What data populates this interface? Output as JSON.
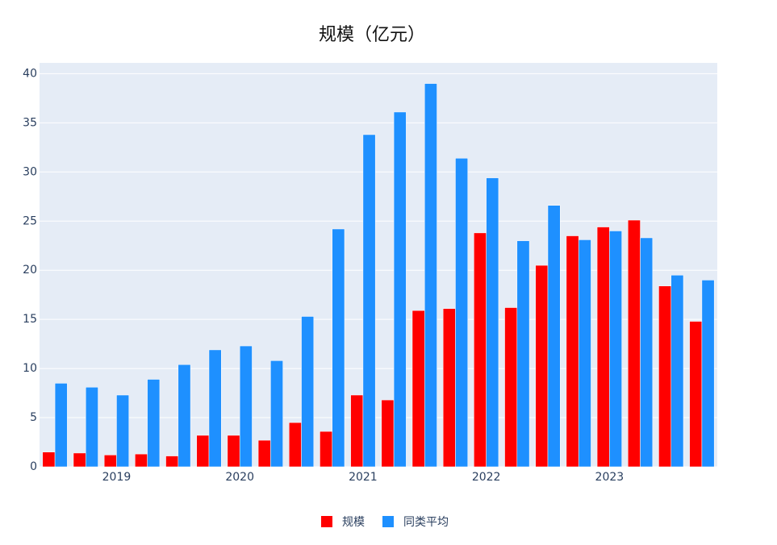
{
  "chart_data": {
    "type": "bar",
    "title": "规模（亿元）",
    "categories": [
      null,
      null,
      "2019",
      null,
      null,
      null,
      "2020",
      null,
      null,
      null,
      "2021",
      null,
      null,
      null,
      "2022",
      null,
      null,
      null,
      "2023",
      null,
      null,
      null
    ],
    "series": [
      {
        "name": "规模",
        "color": "#ff0000",
        "values": [
          1.5,
          1.4,
          1.2,
          1.3,
          1.1,
          3.2,
          3.2,
          2.7,
          4.5,
          3.6,
          7.3,
          6.8,
          15.9,
          16.1,
          23.8,
          16.2,
          20.5,
          23.5,
          24.4,
          25.1,
          18.4,
          14.8
        ]
      },
      {
        "name": "同类平均",
        "color": "#1e90ff",
        "values": [
          8.5,
          8.1,
          7.3,
          8.9,
          10.4,
          11.9,
          12.3,
          10.8,
          15.3,
          24.2,
          33.8,
          36.1,
          39.0,
          31.4,
          29.4,
          23.0,
          26.6,
          23.1,
          24.0,
          23.3,
          19.5,
          19.0
        ]
      }
    ],
    "ylim": [
      0,
      41.1
    ],
    "yticks": [
      0,
      5,
      10,
      15,
      20,
      25,
      30,
      35,
      40
    ],
    "grid": true,
    "legend": "bottom"
  }
}
